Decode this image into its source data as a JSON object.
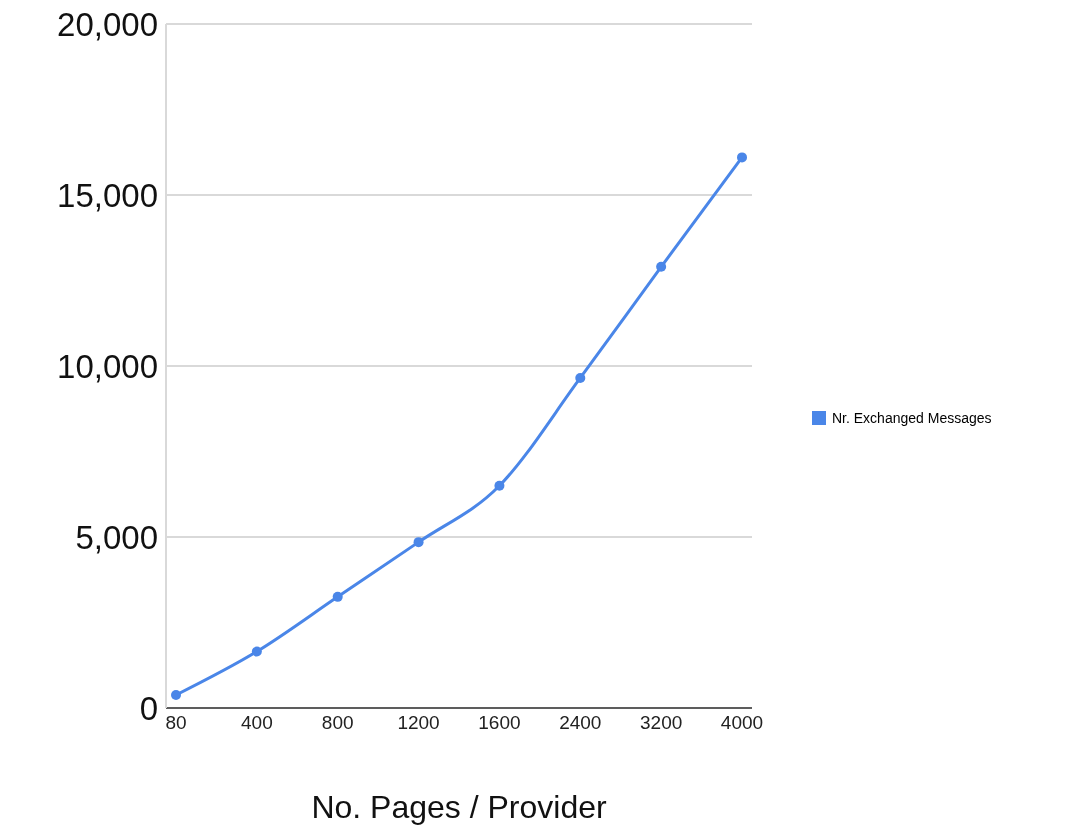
{
  "chart_data": {
    "type": "line",
    "xlabel": "No. Pages / Provider",
    "categories": [
      "80",
      "400",
      "800",
      "1200",
      "1600",
      "2400",
      "3200",
      "4000"
    ],
    "series": [
      {
        "name": "Nr. Exchanged Messages",
        "color": "#4a86e8",
        "values": [
          380,
          1650,
          3250,
          4850,
          6500,
          9650,
          12900,
          16100
        ]
      }
    ],
    "ylim": [
      0,
      20000
    ],
    "yticks": [
      {
        "value": 0,
        "label": "0"
      },
      {
        "value": 5000,
        "label": "5,000"
      },
      {
        "value": 10000,
        "label": "10,000"
      },
      {
        "value": 15000,
        "label": "15,000"
      },
      {
        "value": 20000,
        "label": "20,000"
      }
    ],
    "grid": "y",
    "legend": "right",
    "marker": "circle",
    "line_style": "solid"
  }
}
